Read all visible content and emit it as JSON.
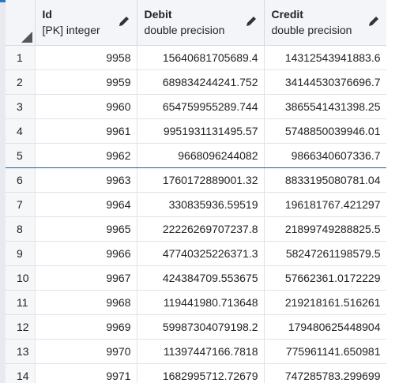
{
  "columns": [
    {
      "name": "Id",
      "type": "[PK] integer"
    },
    {
      "name": "Debit",
      "type": "double precision"
    },
    {
      "name": "Credit",
      "type": "double precision"
    }
  ],
  "rows": [
    {
      "n": "1",
      "id": "9958",
      "debit": "15640681705689.4",
      "credit": "14312543941883.6"
    },
    {
      "n": "2",
      "id": "9959",
      "debit": "689834244241.752",
      "credit": "34144530376696.7"
    },
    {
      "n": "3",
      "id": "9960",
      "debit": "654759955289.744",
      "credit": "3865541431398.25"
    },
    {
      "n": "4",
      "id": "9961",
      "debit": "9951931131495.57",
      "credit": "5748850039946.01"
    },
    {
      "n": "5",
      "id": "9962",
      "debit": "9668096244082",
      "credit": "9866340607336.7"
    },
    {
      "n": "6",
      "id": "9963",
      "debit": "1760172889001.32",
      "credit": "8833195080781.04"
    },
    {
      "n": "7",
      "id": "9964",
      "debit": "330835936.59519",
      "credit": "196181767.421297"
    },
    {
      "n": "8",
      "id": "9965",
      "debit": "22226269707237.8",
      "credit": "21899749288825.5"
    },
    {
      "n": "9",
      "id": "9966",
      "debit": "47740325226371.3",
      "credit": "58247261198579.5"
    },
    {
      "n": "10",
      "id": "9967",
      "debit": "424384709.553675",
      "credit": "57662361.0172229"
    },
    {
      "n": "11",
      "id": "9968",
      "debit": "119441980.713648",
      "credit": "219218161.516261"
    },
    {
      "n": "12",
      "id": "9969",
      "debit": "59987304079198.2",
      "credit": "179480625448904"
    },
    {
      "n": "13",
      "id": "9970",
      "debit": "11397447166.7818",
      "credit": "775961141.650981"
    },
    {
      "n": "14",
      "id": "9971",
      "debit": "1682995712.72679",
      "credit": "747285783.299699"
    }
  ]
}
